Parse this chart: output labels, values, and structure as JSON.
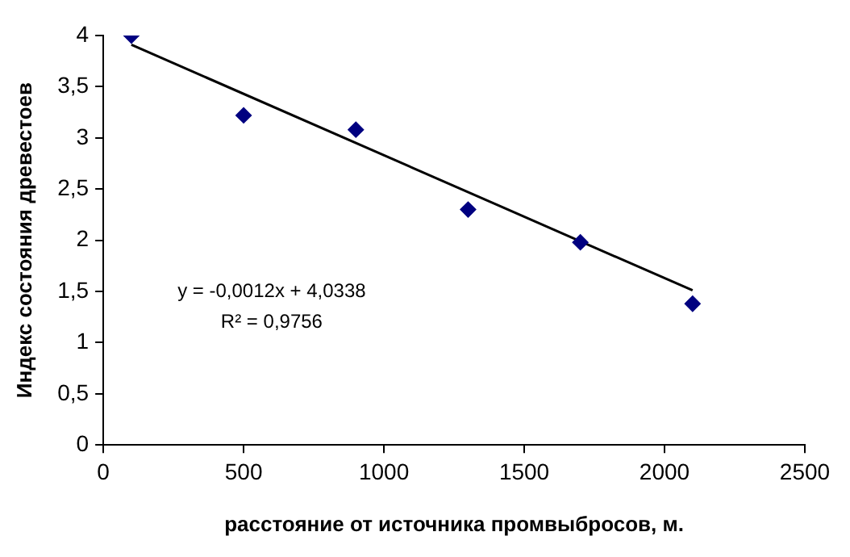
{
  "chart_data": {
    "type": "scatter",
    "xlabel": "расстояние от источника промвыбросов, м.",
    "ylabel": "Индекс состояния древестоев",
    "xlim": [
      0,
      2500
    ],
    "xticks": [
      0,
      500,
      1000,
      1500,
      2000,
      2500
    ],
    "ylim": [
      0,
      4
    ],
    "yticks": [
      0,
      {
        "value": 0.5,
        "label": "0,5"
      },
      1,
      {
        "value": 1.5,
        "label": "1,5"
      },
      2,
      {
        "value": 2.5,
        "label": "2,5"
      },
      3,
      {
        "value": 3.5,
        "label": "3,5"
      },
      4
    ],
    "annotations": [
      "y = -0,0012x + 4,0338",
      "R² = 0,9756"
    ],
    "series": [
      {
        "type": "scatter",
        "color": "#000080",
        "marker": "diamond",
        "x": [
          100,
          500,
          900,
          1300,
          1700,
          2100
        ],
        "values": [
          4.0,
          3.22,
          3.08,
          2.3,
          1.98,
          1.38
        ]
      },
      {
        "type": "line",
        "color": "#000000",
        "marker": "none",
        "line_style": "solid",
        "x": [
          100,
          2100
        ],
        "values": [
          3.91,
          1.51
        ]
      }
    ]
  }
}
